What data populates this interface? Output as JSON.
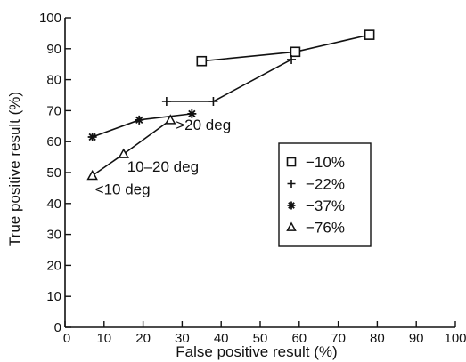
{
  "chart_data": {
    "type": "scatter",
    "xlabel": "False positive result (%)",
    "ylabel": "True positive result (%)",
    "xlim": [
      0,
      100
    ],
    "ylim": [
      0,
      100
    ],
    "xticks": [
      0,
      10,
      20,
      30,
      40,
      50,
      60,
      70,
      80,
      90,
      100
    ],
    "yticks": [
      0,
      10,
      20,
      30,
      40,
      50,
      60,
      70,
      80,
      90,
      100
    ],
    "grid": false,
    "legend_position": "right",
    "series": [
      {
        "name": "−10%",
        "marker": "square",
        "x": [
          35,
          59,
          78
        ],
        "y": [
          86,
          89,
          94.5
        ]
      },
      {
        "name": "−22%",
        "marker": "plus",
        "x": [
          26,
          38,
          58
        ],
        "y": [
          73,
          73,
          86.5
        ]
      },
      {
        "name": "−37%",
        "marker": "asterisk",
        "x": [
          7,
          19,
          32.5
        ],
        "y": [
          61.5,
          67,
          69
        ]
      },
      {
        "name": "−76%",
        "marker": "triangle",
        "x": [
          7,
          15,
          27
        ],
        "y": [
          49,
          56,
          67
        ]
      }
    ],
    "annotations": [
      {
        "text": "<10 deg",
        "x": 7,
        "y": 49
      },
      {
        "text": "10–20 deg",
        "x": 15,
        "y": 56
      },
      {
        "text": ">20 deg",
        "x": 27,
        "y": 67
      }
    ]
  }
}
